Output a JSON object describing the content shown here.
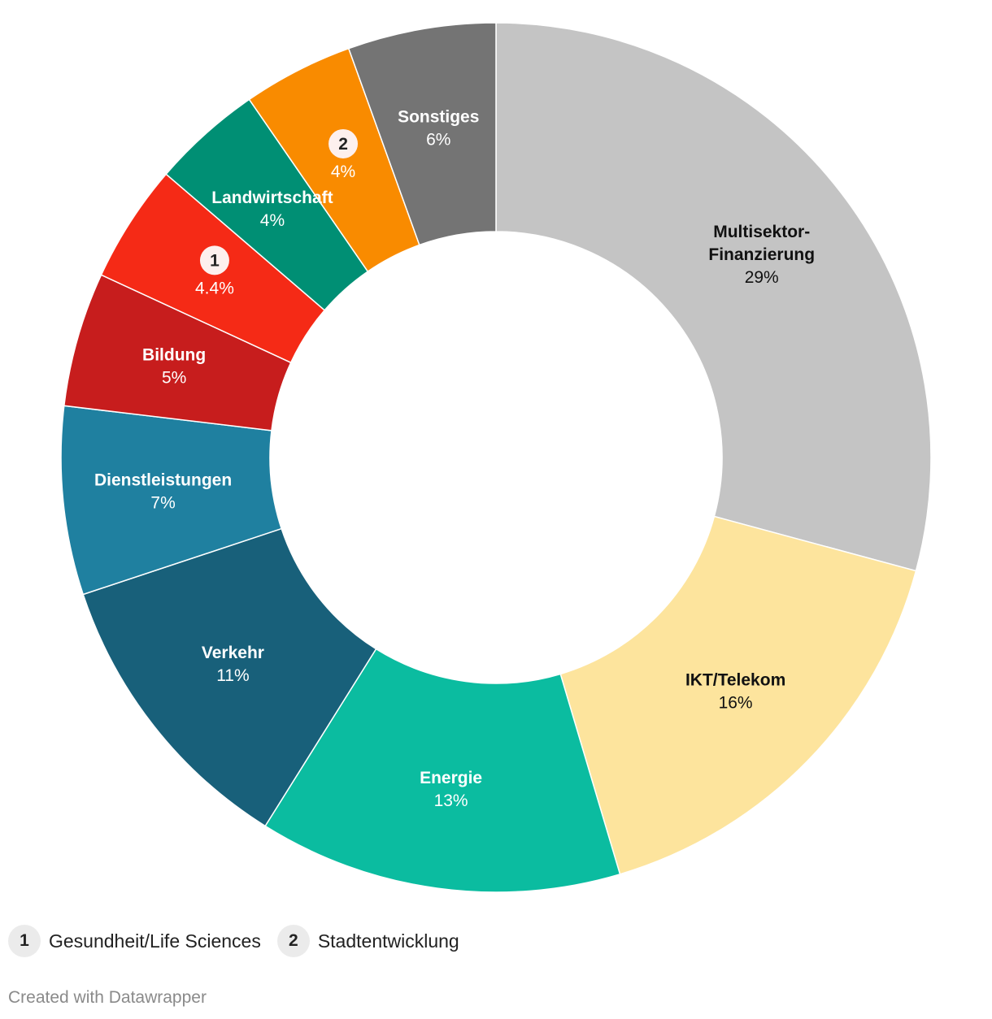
{
  "chart_data": {
    "type": "pie",
    "variant": "donut",
    "slices": [
      {
        "label": "Multisektor-\nFinanzierung",
        "value_label": "29%",
        "value": 29.2,
        "color": "#c4c4c4",
        "text_color": "#111111",
        "badge": ""
      },
      {
        "label": "IKT/Telekom",
        "value_label": "16%",
        "value": 16.2,
        "color": "#fde49d",
        "text_color": "#111111",
        "badge": ""
      },
      {
        "label": "Energie",
        "value_label": "13%",
        "value": 13.5,
        "color": "#0bbca0",
        "text_color": "#ffffff",
        "badge": ""
      },
      {
        "label": "Verkehr",
        "value_label": "11%",
        "value": 11.0,
        "color": "#18607a",
        "text_color": "#ffffff",
        "badge": ""
      },
      {
        "label": "Dienstleistungen",
        "value_label": "7%",
        "value": 7.0,
        "color": "#1f80a0",
        "text_color": "#ffffff",
        "badge": ""
      },
      {
        "label": "Bildung",
        "value_label": "5%",
        "value": 5.0,
        "color": "#c71d1d",
        "text_color": "#ffffff",
        "badge": ""
      },
      {
        "label": "",
        "value_label": "4.4%",
        "value": 4.4,
        "color": "#f52a16",
        "text_color": "#ffffff",
        "badge": "1"
      },
      {
        "label": "Landwirtschaft",
        "value_label": "4%",
        "value": 4.1,
        "color": "#008f74",
        "text_color": "#ffffff",
        "badge": ""
      },
      {
        "label": "",
        "value_label": "4%",
        "value": 4.1,
        "color": "#f98b00",
        "text_color": "#ffffff",
        "badge": "2"
      },
      {
        "label": "Sonstiges",
        "value_label": "6%",
        "value": 5.5,
        "color": "#747474",
        "text_color": "#ffffff",
        "badge": ""
      }
    ],
    "legend": [
      {
        "badge": "1",
        "label": "Gesundheit/Life Sciences"
      },
      {
        "badge": "2",
        "label": "Stadtentwicklung"
      }
    ],
    "credit": "Created with Datawrapper"
  }
}
